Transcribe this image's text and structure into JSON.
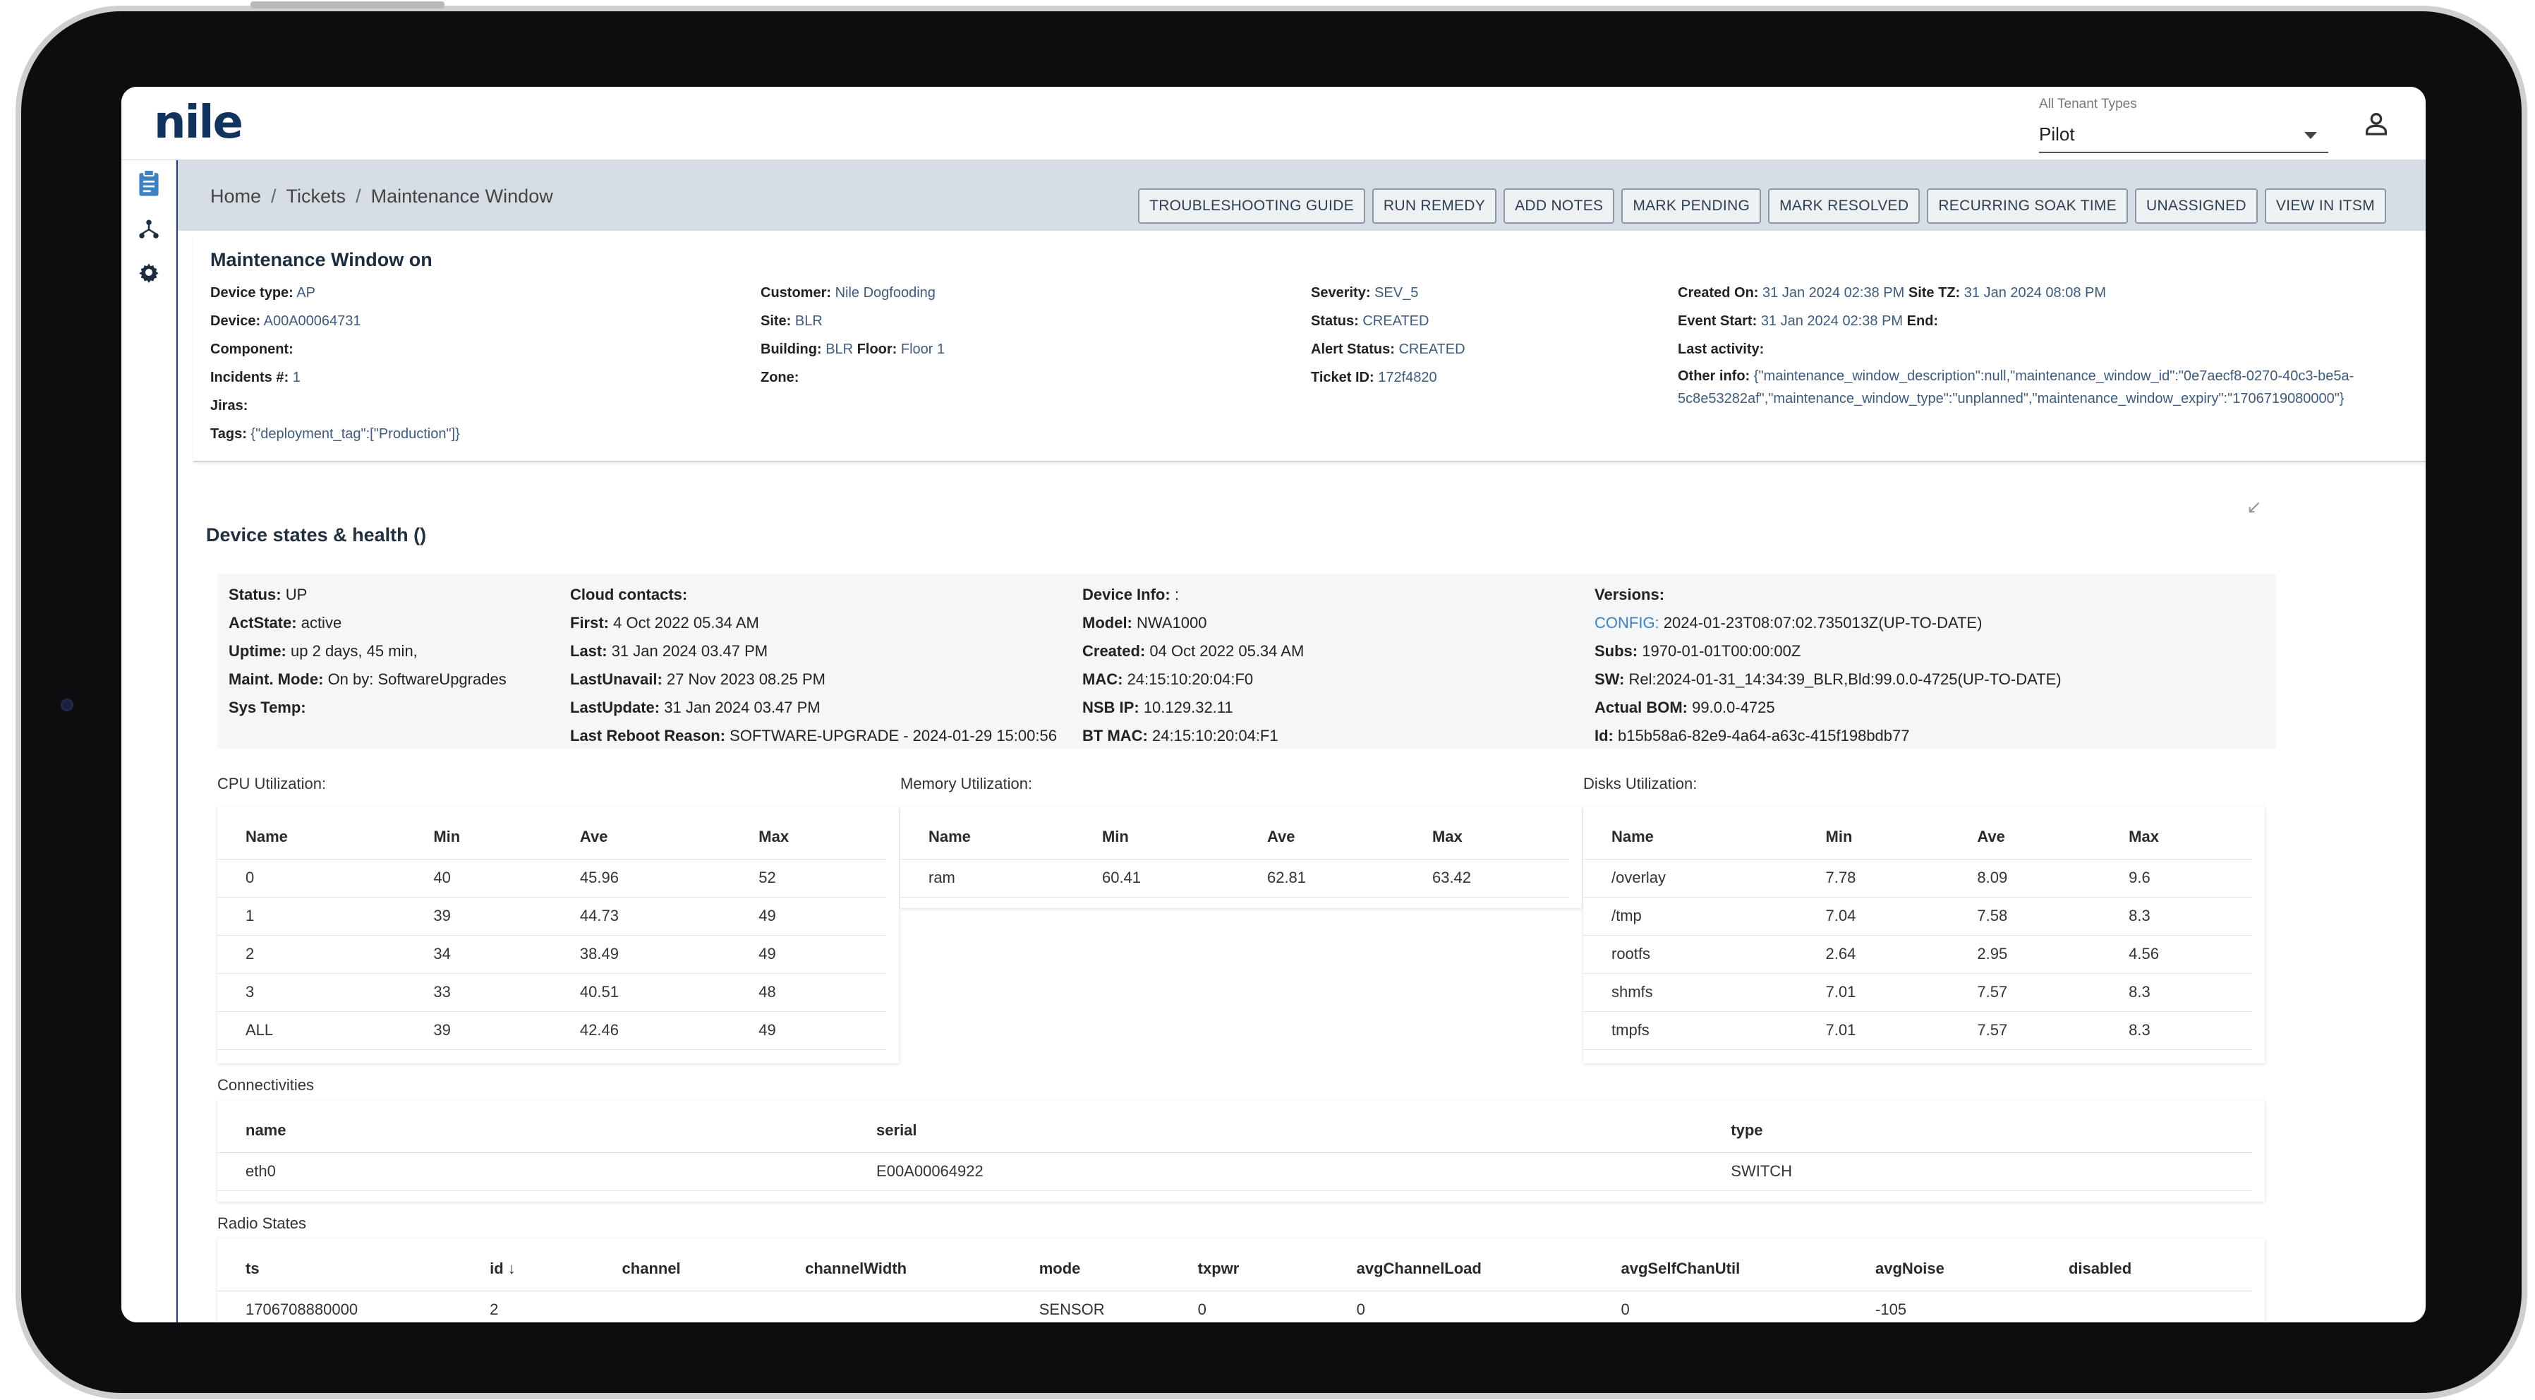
{
  "header": {
    "logo": "nile",
    "tenant_label": "All Tenant Types",
    "tenant_value": "Pilot"
  },
  "breadcrumb": [
    "Home",
    "Tickets",
    "Maintenance Window"
  ],
  "actions": [
    "TROUBLESHOOTING GUIDE",
    "RUN REMEDY",
    "ADD NOTES",
    "MARK PENDING",
    "MARK RESOLVED",
    "RECURRING SOAK TIME",
    "UNASSIGNED",
    "VIEW IN ITSM"
  ],
  "ticket": {
    "title": "Maintenance Window on",
    "col1": [
      {
        "k": "Device type:",
        "v": "AP"
      },
      {
        "k": "Device:",
        "v": "A00A00064731"
      },
      {
        "k": "Component:",
        "v": ""
      },
      {
        "k": "Incidents #:",
        "v": "1"
      },
      {
        "k": "Jiras:",
        "v": ""
      },
      {
        "k": "Tags:",
        "v": "{\"deployment_tag\":[\"Production\"]}"
      }
    ],
    "col2": [
      {
        "k": "Customer:",
        "v": "Nile Dogfooding"
      },
      {
        "k": "Site:",
        "v": "BLR"
      },
      {
        "k": "Building:",
        "v": "BLR",
        "k2": "Floor:",
        "v2": "Floor 1"
      },
      {
        "k": "Zone:",
        "v": ""
      }
    ],
    "col3": [
      {
        "k": "Severity:",
        "v": "SEV_5"
      },
      {
        "k": "Status:",
        "v": "CREATED"
      },
      {
        "k": "Alert Status:",
        "v": "CREATED"
      },
      {
        "k": "Ticket ID:",
        "v": "172f4820"
      }
    ],
    "col4": [
      {
        "k": "Created On:",
        "v": "31 Jan 2024 02:38 PM",
        "k2": "Site TZ:",
        "v2": "31 Jan 2024 08:08 PM"
      },
      {
        "k": "Event Start:",
        "v": "31 Jan 2024 02:38 PM",
        "k2": "End:",
        "v2": ""
      },
      {
        "k": "Last activity:",
        "v": ""
      }
    ],
    "other_info_key": "Other info:",
    "other_info_value": "{\"maintenance_window_description\":null,\"maintenance_window_id\":\"0e7aecf8-0270-40c3-be5a-5c8e53282af\",\"maintenance_window_type\":\"unplanned\",\"maintenance_window_expiry\":\"1706719080000\"}"
  },
  "device_states": {
    "title": "Device states & health ()",
    "col1": [
      {
        "k": "Status:",
        "v": "UP"
      },
      {
        "k": "ActState:",
        "v": "active"
      },
      {
        "k": "Uptime:",
        "v": "up 2 days, 45 min,"
      },
      {
        "k": "Maint. Mode:",
        "v": "On by: SoftwareUpgrades"
      },
      {
        "k": "Sys Temp:",
        "v": ""
      }
    ],
    "col2": [
      {
        "k": "Cloud contacts:",
        "v": ""
      },
      {
        "k": "First:",
        "v": "4 Oct 2022 05.34 AM"
      },
      {
        "k": "Last:",
        "v": "31 Jan 2024 03.47 PM"
      },
      {
        "k": "LastUnavail:",
        "v": "27 Nov 2023 08.25 PM"
      },
      {
        "k": "LastUpdate:",
        "v": "31 Jan 2024 03.47 PM"
      },
      {
        "k": "Last Reboot Reason:",
        "v": "SOFTWARE-UPGRADE - 2024-01-29 15:00:56"
      }
    ],
    "col3": [
      {
        "k": "Device Info:",
        "v": ":"
      },
      {
        "k": "Model:",
        "v": "NWA1000"
      },
      {
        "k": "Created:",
        "v": "04 Oct 2022 05.34 AM"
      },
      {
        "k": "MAC:",
        "v": "24:15:10:20:04:F0"
      },
      {
        "k": "NSB IP:",
        "v": "10.129.32.11"
      },
      {
        "k": "BT MAC:",
        "v": "24:15:10:20:04:F1"
      }
    ],
    "col4": [
      {
        "k": "Versions:",
        "v": ""
      },
      {
        "k": "CONFIG:",
        "v": "2024-01-23T08:07:02.735013Z(UP-TO-DATE)",
        "link": true
      },
      {
        "k": "Subs:",
        "v": "1970-01-01T00:00:00Z"
      },
      {
        "k": "SW:",
        "v": "Rel:2024-01-31_14:34:39_BLR,Bld:99.0.0-4725(UP-TO-DATE)"
      },
      {
        "k": "Actual BOM:",
        "v": "99.0.0-4725"
      },
      {
        "k": "Id:",
        "v": "b15b58a6-82e9-4a64-a63c-415f198bdb77"
      }
    ]
  },
  "cpu": {
    "label": "CPU Utilization:",
    "headers": [
      "Name",
      "Min",
      "Ave",
      "Max"
    ],
    "rows": [
      [
        "0",
        "40",
        "45.96",
        "52"
      ],
      [
        "1",
        "39",
        "44.73",
        "49"
      ],
      [
        "2",
        "34",
        "38.49",
        "49"
      ],
      [
        "3",
        "33",
        "40.51",
        "48"
      ],
      [
        "ALL",
        "39",
        "42.46",
        "49"
      ]
    ]
  },
  "memory": {
    "label": "Memory Utilization:",
    "headers": [
      "Name",
      "Min",
      "Ave",
      "Max"
    ],
    "rows": [
      [
        "ram",
        "60.41",
        "62.81",
        "63.42"
      ]
    ]
  },
  "disks": {
    "label": "Disks Utilization:",
    "headers": [
      "Name",
      "Min",
      "Ave",
      "Max"
    ],
    "rows": [
      [
        "/overlay",
        "7.78",
        "8.09",
        "9.6"
      ],
      [
        "/tmp",
        "7.04",
        "7.58",
        "8.3"
      ],
      [
        "rootfs",
        "2.64",
        "2.95",
        "4.56"
      ],
      [
        "shmfs",
        "7.01",
        "7.57",
        "8.3"
      ],
      [
        "tmpfs",
        "7.01",
        "7.57",
        "8.3"
      ]
    ]
  },
  "connectivities": {
    "label": "Connectivities",
    "headers": [
      "name",
      "serial",
      "type"
    ],
    "rows": [
      [
        "eth0",
        "E00A00064922",
        "SWITCH"
      ]
    ]
  },
  "radio": {
    "label": "Radio States",
    "headers": [
      "ts",
      "id",
      "channel",
      "channelWidth",
      "mode",
      "txpwr",
      "avgChannelLoad",
      "avgSelfChanUtil",
      "avgNoise",
      "disabled"
    ],
    "rows": [
      [
        "1706708880000",
        "2",
        "",
        "",
        "SENSOR",
        "0",
        "0",
        "0",
        "-105",
        ""
      ]
    ]
  }
}
